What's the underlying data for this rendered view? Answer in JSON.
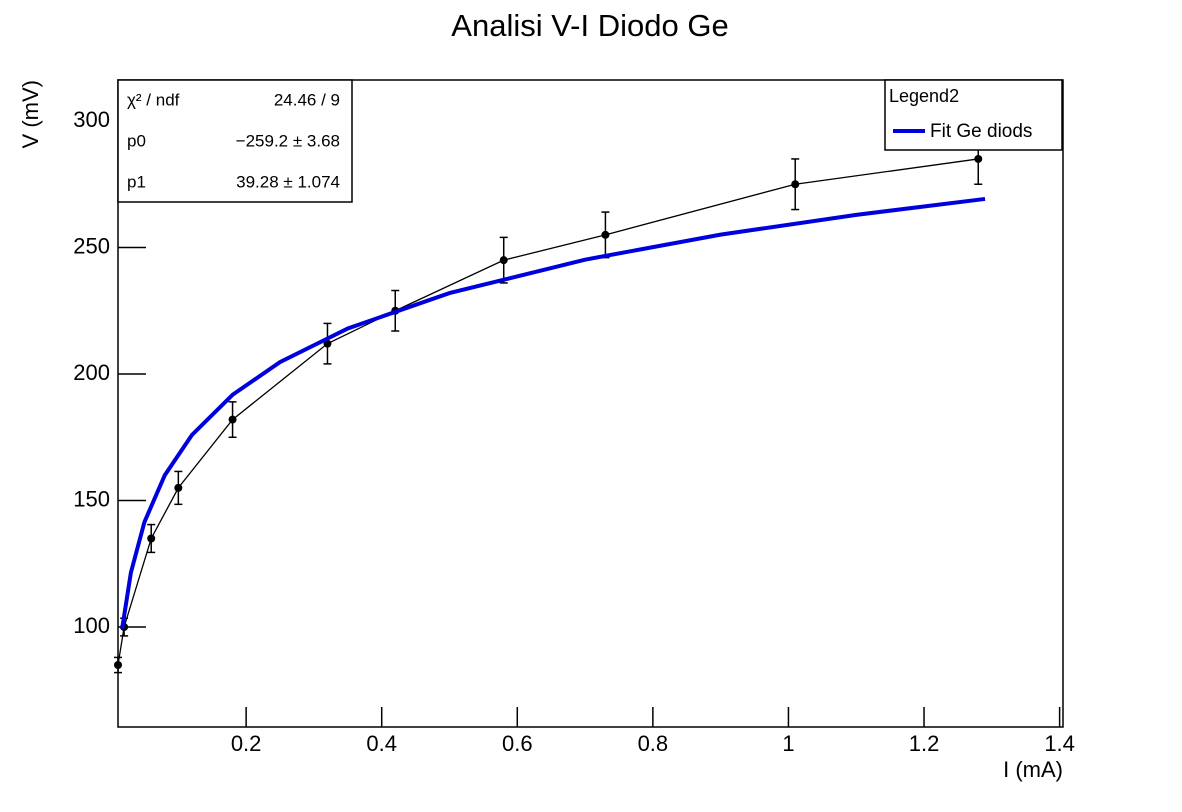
{
  "chart_data": {
    "type": "scatter",
    "title": "Analisi V-I Diodo Ge",
    "x_label": "I (mA)",
    "y_label": "V (mV)",
    "xlim": [
      0.011,
      1.405
    ],
    "ylim": [
      60.5,
      316.2
    ],
    "xticks": [
      0.2,
      0.4,
      0.6,
      0.8,
      1,
      1.2,
      1.4
    ],
    "yticks": [
      100,
      150,
      200,
      250,
      300
    ],
    "series": [
      {
        "color": "#000000",
        "x": [
          0.011,
          0.02,
          0.06,
          0.1,
          0.18,
          0.32,
          0.42,
          0.58,
          0.73,
          1.01,
          1.28
        ],
        "values": [
          85,
          100,
          135,
          155,
          182,
          212,
          225,
          245,
          255,
          275,
          285
        ],
        "errors": [
          3,
          3.5,
          5.5,
          6.5,
          7,
          8,
          8,
          9,
          9,
          10,
          10
        ]
      },
      {
        "name": "Fit Ge diods",
        "color": "#0000dd",
        "x": [
          0.017,
          0.03,
          0.05,
          0.08,
          0.12,
          0.18,
          0.25,
          0.35,
          0.5,
          0.7,
          0.9,
          1.1,
          1.29
        ],
        "values": [
          99.2,
          121.5,
          141.5,
          160.0,
          175.9,
          191.8,
          204.7,
          218.0,
          232.0,
          245.2,
          255.1,
          262.9,
          269.2
        ]
      }
    ],
    "legend": {
      "title": "Legend2",
      "position": "top-right"
    },
    "stats": {
      "rows": [
        [
          "χ² / ndf",
          "24.46 / 9"
        ],
        [
          "p0",
          "−259.2 ±  3.68"
        ],
        [
          "p1",
          "39.28 ± 1.074"
        ]
      ]
    }
  }
}
